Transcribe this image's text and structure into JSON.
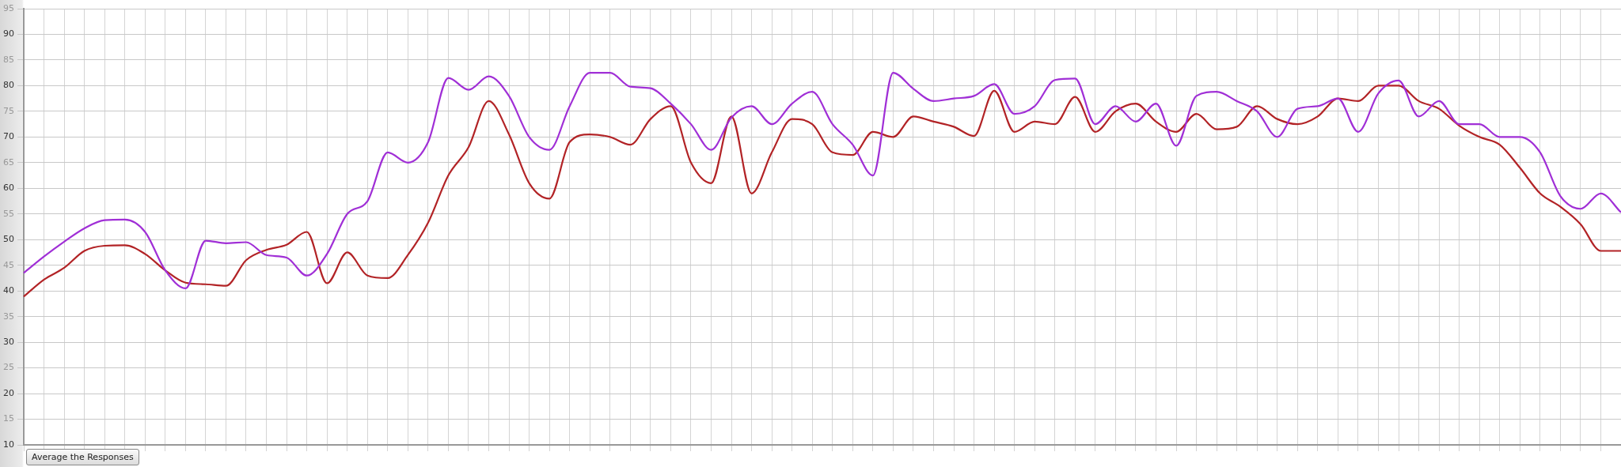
{
  "chart_data": {
    "type": "line",
    "categories": [
      null,
      null,
      null,
      null,
      null,
      null,
      null,
      null,
      null,
      null,
      null,
      null,
      null,
      null,
      null,
      null,
      null,
      null,
      null,
      null,
      null,
      null,
      null,
      null,
      null,
      null,
      null,
      null,
      null,
      null,
      null,
      null,
      null,
      null,
      null,
      null,
      null,
      null,
      null,
      null,
      null,
      null,
      null,
      null,
      null,
      null,
      null,
      null,
      null,
      null,
      null,
      null,
      null,
      null,
      null,
      null,
      null,
      null,
      null,
      null,
      null,
      null,
      null,
      null,
      null,
      null,
      null,
      null,
      null,
      null,
      null,
      null,
      null,
      null,
      null,
      null,
      null,
      null,
      null,
      null
    ],
    "series": [
      {
        "color": "#a02fd6",
        "values": [
          43.5,
          46.7,
          49.6,
          52.2,
          53.8,
          53.9,
          51.5,
          44,
          40.5,
          49.8,
          49.3,
          49.5,
          47,
          46.5,
          43,
          47.2,
          55,
          57.5,
          67,
          65,
          69,
          81.5,
          79.2,
          81.8,
          78,
          70,
          67.5,
          76,
          82.5,
          82.5,
          79.8,
          79.5,
          76.5,
          72.5,
          67.5,
          73.8,
          76,
          72.5,
          76.5,
          78.8,
          72.5,
          68.5,
          62.5,
          82.5,
          79.4,
          77,
          77.5,
          78,
          80.3,
          74.5,
          76,
          81.1,
          81.4,
          72.5,
          76,
          73,
          76.5,
          68.3,
          78,
          78.8,
          77,
          75,
          70,
          75.5,
          76,
          77.5,
          71,
          78.5,
          81,
          74,
          77,
          72.5,
          72.5,
          70,
          70,
          67,
          58.5,
          56,
          59,
          55.3
        ]
      },
      {
        "color": "#b22326",
        "values": [
          38.9,
          42.2,
          44.5,
          47.8,
          48.8,
          48.9,
          47.2,
          44,
          41.6,
          41.3,
          41,
          46,
          48,
          49,
          51.5,
          41.5,
          47.5,
          43,
          42.5,
          47,
          53.3,
          62.5,
          68,
          77,
          70.5,
          61,
          58,
          69,
          70.5,
          70,
          68.5,
          73.5,
          76,
          65,
          61,
          74,
          59,
          67,
          73.5,
          72.5,
          67,
          66.5,
          71,
          70,
          74,
          73,
          72,
          70.2,
          79,
          71,
          73,
          72.5,
          77.8,
          71,
          75,
          76.5,
          73,
          71,
          74.5,
          71.5,
          72,
          76,
          73.5,
          72.5,
          74,
          77.5,
          77,
          80,
          80,
          77,
          75.5,
          72.2,
          70,
          68.5,
          64,
          59,
          56.4,
          53,
          47.8,
          47.8
        ]
      }
    ],
    "ylim": [
      10,
      95
    ],
    "yticks": [
      10,
      15,
      20,
      25,
      30,
      35,
      40,
      45,
      50,
      55,
      60,
      65,
      70,
      75,
      80,
      85,
      90,
      95
    ],
    "grid": true,
    "legend": false,
    "marker": "none",
    "line_style": "solid",
    "tick_labels": "y",
    "annotations": [
      "Average the Responses"
    ]
  }
}
